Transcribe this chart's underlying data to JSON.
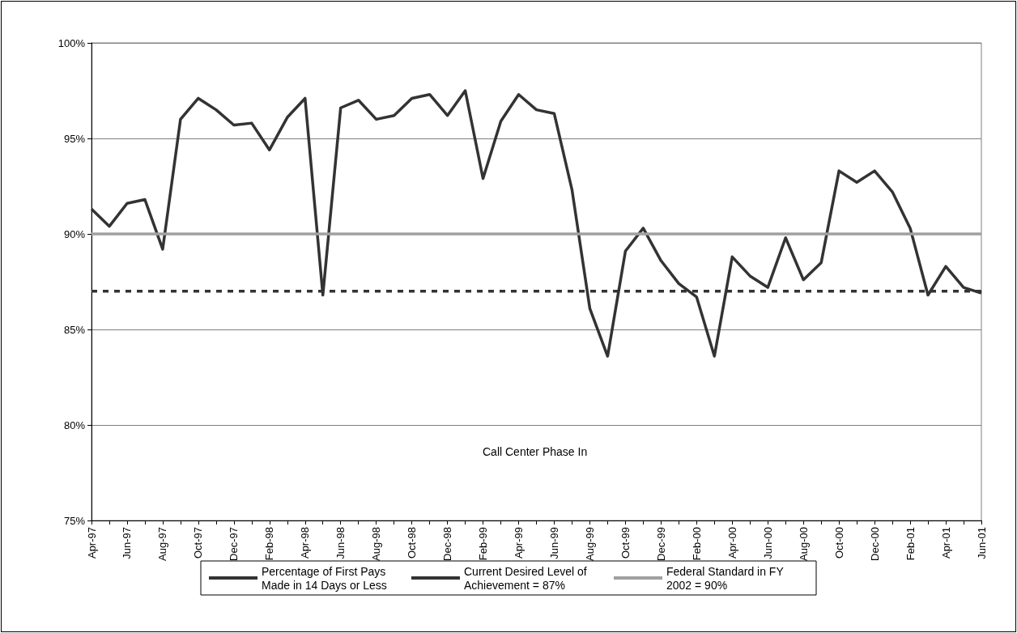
{
  "chart_data": {
    "type": "line",
    "categories": [
      "Apr-97",
      null,
      "Jun-97",
      null,
      "Aug-97",
      null,
      "Oct-97",
      null,
      "Dec-97",
      null,
      "Feb-98",
      null,
      "Apr-98",
      null,
      "Jun-98",
      null,
      "Aug-98",
      null,
      "Oct-98",
      null,
      "Dec-98",
      null,
      "Feb-99",
      null,
      "Apr-99",
      null,
      "Jun-99",
      null,
      "Aug-99",
      null,
      "Oct-99",
      null,
      "Dec-99",
      null,
      "Feb-00",
      null,
      "Apr-00",
      null,
      "Jun-00",
      null,
      "Aug-00",
      null,
      "Oct-00",
      null,
      "Dec-00",
      null,
      "Feb-01",
      null,
      "Apr-01",
      null,
      "Jun-01"
    ],
    "series": [
      {
        "name": "Percentage of First Pays Made in 14 Days or Less",
        "color": "#333333",
        "line_style": "solid",
        "values": [
          91.3,
          90.4,
          91.6,
          91.8,
          89.2,
          96.0,
          97.1,
          96.5,
          95.7,
          95.8,
          94.4,
          96.1,
          97.1,
          86.8,
          96.6,
          97.0,
          96.0,
          96.2,
          97.1,
          97.3,
          96.2,
          97.5,
          92.9,
          95.9,
          97.3,
          96.5,
          96.3,
          92.3,
          86.1,
          83.6,
          89.1,
          90.3,
          88.6,
          87.4,
          86.7,
          83.6,
          88.8,
          87.8,
          87.2,
          89.8,
          87.6,
          88.5,
          93.3,
          92.7,
          93.3,
          92.2,
          90.3,
          86.8,
          88.3,
          87.2,
          86.9
        ]
      },
      {
        "name": "Current Desired Level of Achievement = 87%",
        "color": "#333333",
        "line_style": "dashed",
        "values": [
          87,
          87,
          87,
          87,
          87,
          87,
          87,
          87,
          87,
          87,
          87,
          87,
          87,
          87,
          87,
          87,
          87,
          87,
          87,
          87,
          87,
          87,
          87,
          87,
          87,
          87,
          87,
          87,
          87,
          87,
          87,
          87,
          87,
          87,
          87,
          87,
          87,
          87,
          87,
          87,
          87,
          87,
          87,
          87,
          87,
          87,
          87,
          87,
          87,
          87,
          87
        ]
      },
      {
        "name": "Federal Standard in FY 2002 = 90%",
        "color": "#a0a0a0",
        "line_style": "solid",
        "values": [
          90,
          90,
          90,
          90,
          90,
          90,
          90,
          90,
          90,
          90,
          90,
          90,
          90,
          90,
          90,
          90,
          90,
          90,
          90,
          90,
          90,
          90,
          90,
          90,
          90,
          90,
          90,
          90,
          90,
          90,
          90,
          90,
          90,
          90,
          90,
          90,
          90,
          90,
          90,
          90,
          90,
          90,
          90,
          90,
          90,
          90,
          90,
          90,
          90,
          90,
          90
        ]
      }
    ],
    "ylim": [
      75,
      100
    ],
    "yticks": [
      {
        "value": 75,
        "label": "75%"
      },
      {
        "value": 80,
        "label": "80%"
      },
      {
        "value": 85,
        "label": "85%"
      },
      {
        "value": 90,
        "label": "90%"
      },
      {
        "value": 95,
        "label": "95%"
      },
      {
        "value": 100,
        "label": "100%"
      }
    ],
    "grid": "y",
    "legend": "bottom",
    "marker": "none",
    "annotations": [
      "Call Center Phase In"
    ]
  }
}
